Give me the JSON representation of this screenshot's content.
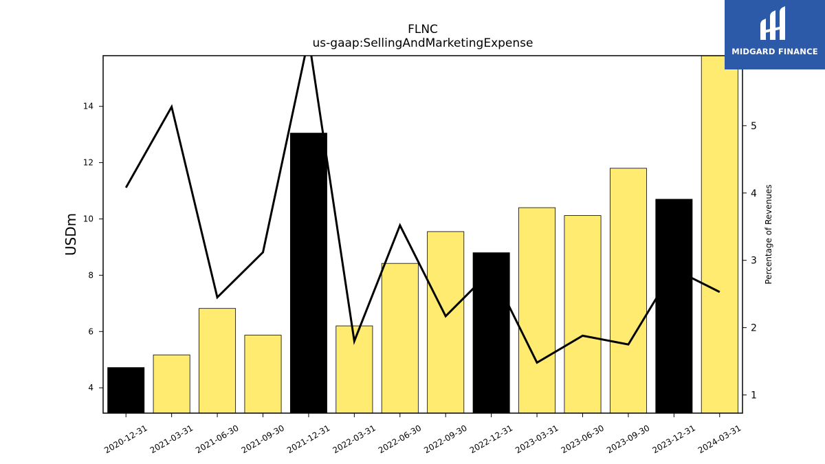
{
  "chart_data": {
    "type": "bar",
    "title": "FLNC",
    "subtitle": "us-gaap:SellingAndMarketingExpense",
    "ylabel": "USDm",
    "y2label": "Percentage of Revenues",
    "ylim": [
      3.1,
      15.8
    ],
    "y2lim": [
      0.73,
      6.04
    ],
    "yticks": [
      4,
      6,
      8,
      10,
      12,
      14
    ],
    "y2ticks": [
      1,
      2,
      3,
      4,
      5
    ],
    "categories": [
      "2020-12-31",
      "2021-03-31",
      "2021-06-30",
      "2021-09-30",
      "2021-12-31",
      "2022-03-31",
      "2022-06-30",
      "2022-09-30",
      "2022-12-31",
      "2023-03-31",
      "2023-06-30",
      "2023-09-30",
      "2023-12-31",
      "2024-03-31"
    ],
    "series": [
      {
        "kind": "bar",
        "axis": "left",
        "values": [
          4.72,
          5.17,
          6.82,
          5.87,
          13.05,
          6.2,
          8.42,
          9.55,
          8.8,
          10.4,
          10.12,
          11.8,
          10.7,
          15.8
        ],
        "colors": [
          "#000000",
          "#ffeb70",
          "#ffeb70",
          "#ffeb70",
          "#000000",
          "#ffeb70",
          "#ffeb70",
          "#ffeb70",
          "#000000",
          "#ffeb70",
          "#ffeb70",
          "#ffeb70",
          "#000000",
          "#ffeb70"
        ]
      },
      {
        "kind": "line",
        "axis": "right",
        "color": "#000000",
        "values": [
          4.08,
          5.28,
          2.45,
          3.12,
          6.3,
          1.8,
          3.52,
          2.17,
          2.85,
          1.48,
          1.88,
          1.75,
          2.87,
          2.53
        ]
      }
    ]
  },
  "logo": {
    "text": "MIDGARD FINANCE"
  }
}
